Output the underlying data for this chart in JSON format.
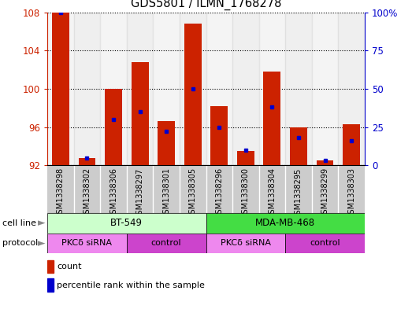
{
  "title": "GDS5801 / ILMN_1768278",
  "samples": [
    "GSM1338298",
    "GSM1338302",
    "GSM1338306",
    "GSM1338297",
    "GSM1338301",
    "GSM1338305",
    "GSM1338296",
    "GSM1338300",
    "GSM1338304",
    "GSM1338295",
    "GSM1338299",
    "GSM1338303"
  ],
  "counts": [
    108.0,
    92.8,
    100.0,
    102.8,
    96.6,
    106.8,
    98.2,
    93.5,
    101.8,
    96.0,
    92.5,
    96.3
  ],
  "percentile_ranks": [
    100,
    5,
    30,
    35,
    22,
    50,
    25,
    10,
    38,
    18,
    3,
    16
  ],
  "ylim_left": [
    92,
    108
  ],
  "ylim_right": [
    0,
    100
  ],
  "yticks_left": [
    92,
    96,
    100,
    104,
    108
  ],
  "yticks_right": [
    0,
    25,
    50,
    75,
    100
  ],
  "bar_color": "#cc2200",
  "dot_color": "#0000cc",
  "base_value": 92,
  "cell_line_data": [
    {
      "label": "BT-549",
      "start": 0,
      "end": 6,
      "color": "#ccffcc"
    },
    {
      "label": "MDA-MB-468",
      "start": 6,
      "end": 12,
      "color": "#44dd44"
    }
  ],
  "protocol_data": [
    {
      "label": "PKCδ siRNA",
      "start": 0,
      "end": 3,
      "color": "#ee88ee"
    },
    {
      "label": "control",
      "start": 3,
      "end": 6,
      "color": "#cc44cc"
    },
    {
      "label": "PKCδ siRNA",
      "start": 6,
      "end": 9,
      "color": "#ee88ee"
    },
    {
      "label": "control",
      "start": 9,
      "end": 12,
      "color": "#cc44cc"
    }
  ],
  "xlabel_cellline": "cell line",
  "xlabel_protocol": "protocol",
  "legend_count": "count",
  "legend_percentile": "percentile rank within the sample",
  "sample_bg_color": "#cccccc",
  "sample_border_color": "#aaaaaa"
}
